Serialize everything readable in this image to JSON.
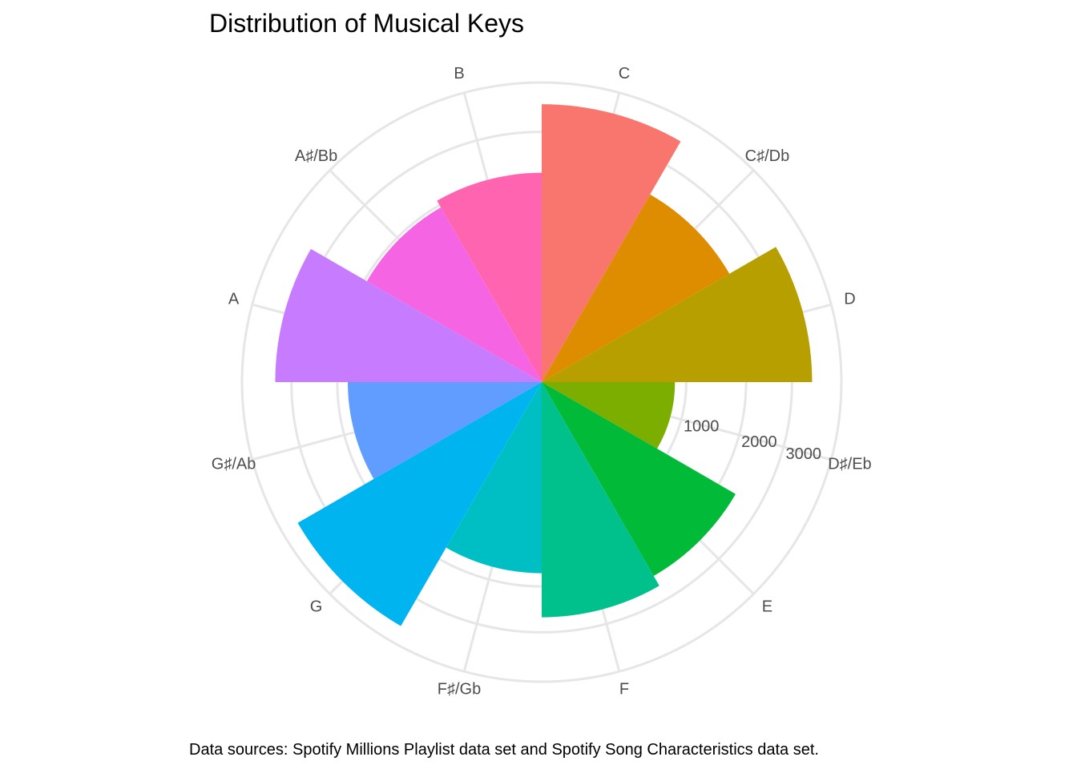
{
  "chart_data": {
    "type": "polar-bar",
    "title": "Distribution of Musical Keys",
    "caption": "Data sources: Spotify Millions Playlist data set and Spotify Song Characteristics data set.",
    "categories": [
      "C",
      "C♯/Db",
      "D",
      "D♯/Eb",
      "E",
      "F",
      "F♯/Gb",
      "G",
      "G♯/Ab",
      "A",
      "A♯/Bb",
      "B"
    ],
    "values": [
      3700,
      2250,
      3500,
      850,
      2400,
      2650,
      1750,
      3800,
      1800,
      3400,
      1950,
      2100
    ],
    "colors": [
      "#F8766D",
      "#DE8C00",
      "#B79F00",
      "#7CAE00",
      "#00BA38",
      "#00C08B",
      "#00BFC4",
      "#00B4F0",
      "#619CFF",
      "#C77CFF",
      "#F564E3",
      "#FF64B0"
    ],
    "radial_ticks": [
      "1000",
      "2000",
      "3000"
    ],
    "radial_tick_values": [
      1000,
      2000,
      3000
    ],
    "radial_max": 4300,
    "grid": true,
    "legend": "none"
  }
}
